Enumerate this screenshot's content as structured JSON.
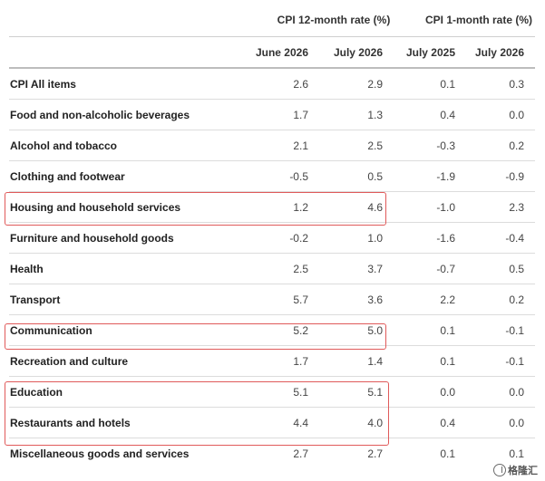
{
  "table": {
    "group_headers": {
      "group_12m": "CPI 12-month rate (%)",
      "group_1m": "CPI 1-month rate (%)"
    },
    "columns": [
      "June 2026",
      "July 2026",
      "July 2025",
      "July 2026"
    ],
    "rows": [
      {
        "label": "CPI All items",
        "values": [
          "2.6",
          "2.9",
          "0.1",
          "0.3"
        ]
      },
      {
        "label": "Food and non-alcoholic beverages",
        "values": [
          "1.7",
          "1.3",
          "0.4",
          "0.0"
        ]
      },
      {
        "label": "Alcohol and tobacco",
        "values": [
          "2.1",
          "2.5",
          "-0.3",
          "0.2"
        ]
      },
      {
        "label": "Clothing and footwear",
        "values": [
          "-0.5",
          "0.5",
          "-1.9",
          "-0.9"
        ]
      },
      {
        "label": "Housing and household services",
        "values": [
          "1.2",
          "4.6",
          "-1.0",
          "2.3"
        ]
      },
      {
        "label": "Furniture and household goods",
        "values": [
          "-0.2",
          "1.0",
          "-1.6",
          "-0.4"
        ]
      },
      {
        "label": "Health",
        "values": [
          "2.5",
          "3.7",
          "-0.7",
          "0.5"
        ]
      },
      {
        "label": "Transport",
        "values": [
          "5.7",
          "3.6",
          "2.2",
          "0.2"
        ]
      },
      {
        "label": "Communication",
        "values": [
          "5.2",
          "5.0",
          "0.1",
          "-0.1"
        ]
      },
      {
        "label": "Recreation and culture",
        "values": [
          "1.7",
          "1.4",
          "0.1",
          "-0.1"
        ]
      },
      {
        "label": "Education",
        "values": [
          "5.1",
          "5.1",
          "0.0",
          "0.0"
        ]
      },
      {
        "label": "Restaurants and hotels",
        "values": [
          "4.4",
          "4.0",
          "0.4",
          "0.0"
        ]
      },
      {
        "label": "Miscellaneous goods and services",
        "values": [
          "2.7",
          "2.7",
          "0.1",
          "0.1"
        ]
      }
    ]
  },
  "highlights": {
    "color": "#e05a5a",
    "rows": [
      "Housing and household services",
      "Communication",
      "Education",
      "Restaurants and hotels"
    ]
  },
  "watermark": {
    "text": "格隆汇",
    "icon": "gelonghui-logo-icon"
  }
}
